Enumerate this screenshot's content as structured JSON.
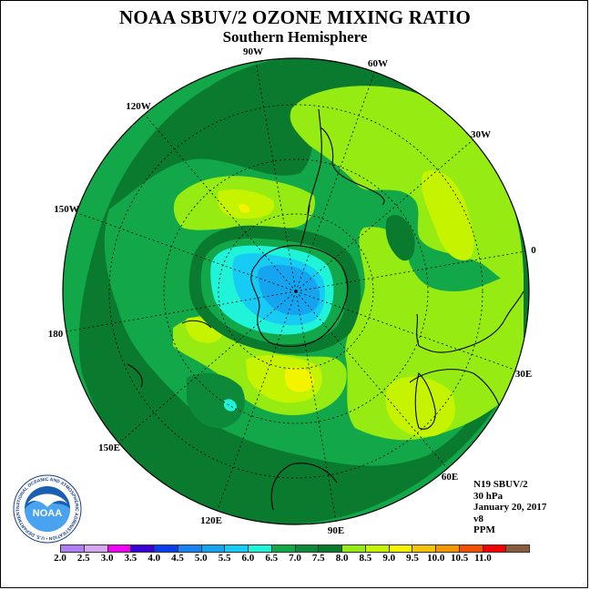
{
  "title": "NOAA SBUV/2 OZONE MIXING RATIO",
  "subtitle": "Southern Hemisphere",
  "longitude_labels": {
    "lon_90W": "90W",
    "lon_60W": "60W",
    "lon_30W": "30W",
    "lon_0": "0",
    "lon_30E": "30E",
    "lon_60E": "60E",
    "lon_90E": "90E",
    "lon_120E": "120E",
    "lon_150E": "150E",
    "lon_180": "180",
    "lon_150W": "150W",
    "lon_120W": "120W"
  },
  "info": {
    "satellite": "N19 SBUV/2",
    "pressure": "30 hPa",
    "date": "January 20, 2017",
    "version": "v8",
    "units": "PPM"
  },
  "logo_text": "NOAA",
  "logo_ring_text": "NATIONAL OCEANIC AND ATMOSPHERIC ADMINISTRATION • U.S. DEPARTMENT OF COMMERCE",
  "colorbar": {
    "labels": [
      "2.0",
      "2.5",
      "3.0",
      "3.5",
      "4.0",
      "4.5",
      "5.0",
      "5.5",
      "6.0",
      "6.5",
      "7.0",
      "7.5",
      "8.0",
      "8.5",
      "9.0",
      "9.5",
      "10.0",
      "10.5",
      "11.0"
    ],
    "colors": [
      "#b07ef0",
      "#d7a8f0",
      "#f400f4",
      "#3a00d8",
      "#0a3cf0",
      "#1a82f0",
      "#14a4f0",
      "#16ccf4",
      "#20f4d8",
      "#12a84a",
      "#0c8a3a",
      "#077a2c",
      "#96ec12",
      "#c6f400",
      "#f4f400",
      "#f4c400",
      "#f49600",
      "#f45000",
      "#f40000",
      "#8a5a3c"
    ]
  },
  "colors": {
    "field_base": "#12a84a",
    "dark_green": "#0a7a2e",
    "lime": "#96ec12",
    "yellow_green": "#c6f400",
    "yellow": "#f4f400",
    "cyan": "#20f4d8",
    "light_blue": "#16ccf4",
    "blue": "#14a4f0"
  }
}
